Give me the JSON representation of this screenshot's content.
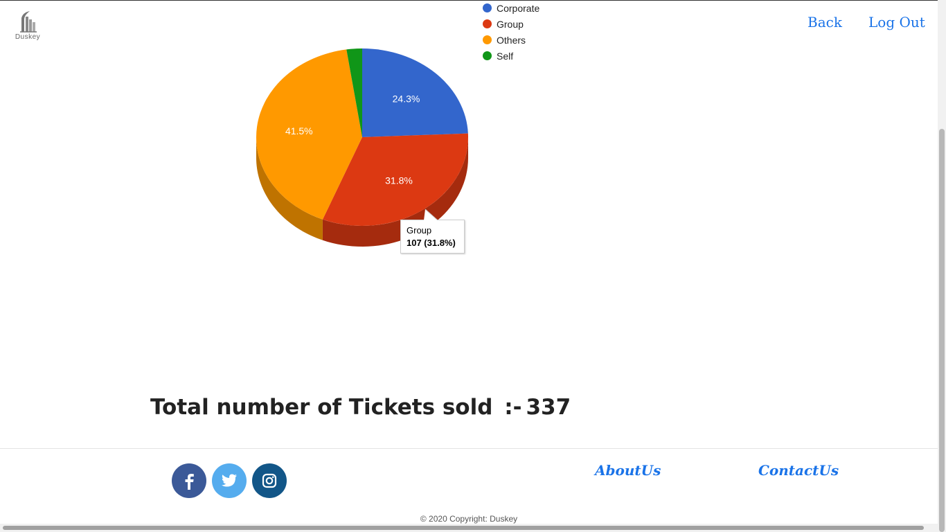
{
  "brand": {
    "name": "Duskey"
  },
  "nav": {
    "back": "Back",
    "logout": "Log Out"
  },
  "chart_data": {
    "type": "pie",
    "legend_position": "top-right",
    "series": [
      {
        "name": "Corporate",
        "value": 82,
        "label": "24.3%",
        "color": "#3366cc"
      },
      {
        "name": "Group",
        "value": 107,
        "label": "31.8%",
        "color": "#dc3912"
      },
      {
        "name": "Others",
        "value": 140,
        "label": "41.5%",
        "color": "#ff9900"
      },
      {
        "name": "Self",
        "value": 8,
        "label": "",
        "color": "#109618"
      }
    ]
  },
  "tooltip": {
    "title": "Group",
    "value": "107 (31.8%)"
  },
  "total": {
    "label": "Total number of Tickets sold",
    "separator": ":-",
    "value": "337"
  },
  "footer": {
    "social": [
      {
        "icon": "facebook-icon",
        "glyph": "f",
        "color": "#3b5998"
      },
      {
        "icon": "twitter-icon",
        "glyph": "t",
        "color": "#55acee"
      },
      {
        "icon": "instagram-icon",
        "glyph": "i",
        "color": "#125688"
      }
    ],
    "about": "AboutUs",
    "contact": "ContactUs",
    "copyright": "© 2020 Copyright: Duskey"
  }
}
